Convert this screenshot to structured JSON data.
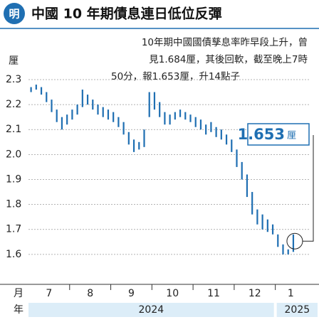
{
  "logo": "明",
  "chart_data": {
    "type": "range-bar",
    "title": "中國 10 年期債息連日低位反彈",
    "note": [
      "10年期中國國債孳息率昨早段上升，曾",
      "見1.684厘，其後回軟，截至晚上7時",
      "50分，報1.653厘，升14點子"
    ],
    "y_label": "厘",
    "x_label": "月",
    "year_label": "年",
    "categories": [
      "7",
      "8",
      "9",
      "10",
      "11",
      "12",
      "1"
    ],
    "years": [
      "2024",
      "2025"
    ],
    "color": "#1f6fb2",
    "high": [
      2.27,
      2.28,
      2.27,
      2.25,
      2.22,
      2.18,
      2.15,
      2.16,
      2.18,
      2.2,
      2.26,
      2.24,
      2.22,
      2.2,
      2.19,
      2.18,
      2.17,
      2.15,
      2.13,
      2.09,
      2.06,
      2.05,
      2.1,
      2.25,
      2.25,
      2.21,
      2.17,
      2.16,
      2.17,
      2.18,
      2.17,
      2.16,
      2.15,
      2.14,
      2.12,
      2.13,
      2.11,
      2.1,
      2.08,
      2.06,
      2.02,
      1.97,
      1.92,
      1.85,
      1.78,
      1.76,
      1.74,
      1.72,
      1.68,
      1.64,
      1.62,
      1.68
    ],
    "low": [
      2.25,
      2.26,
      2.24,
      2.21,
      2.17,
      2.13,
      2.1,
      2.12,
      2.14,
      2.16,
      2.19,
      2.2,
      2.18,
      2.16,
      2.15,
      2.14,
      2.13,
      2.11,
      2.08,
      2.04,
      2.01,
      2.02,
      2.03,
      2.15,
      2.18,
      2.15,
      2.12,
      2.12,
      2.14,
      2.15,
      2.14,
      2.13,
      2.11,
      2.1,
      2.08,
      2.09,
      2.07,
      2.06,
      2.04,
      2.01,
      1.95,
      1.9,
      1.83,
      1.76,
      1.72,
      1.7,
      1.69,
      1.68,
      1.63,
      1.6,
      1.6,
      1.61
    ],
    "callout": {
      "value": 1.653,
      "unit": "厘"
    },
    "ylim": [
      1.48,
      2.3
    ],
    "yticks": [
      2.3,
      2.2,
      2.1,
      {
        "value": 2,
        "label": "2.0"
      },
      1.9,
      1.8,
      1.7,
      1.6
    ],
    "grid": true
  }
}
